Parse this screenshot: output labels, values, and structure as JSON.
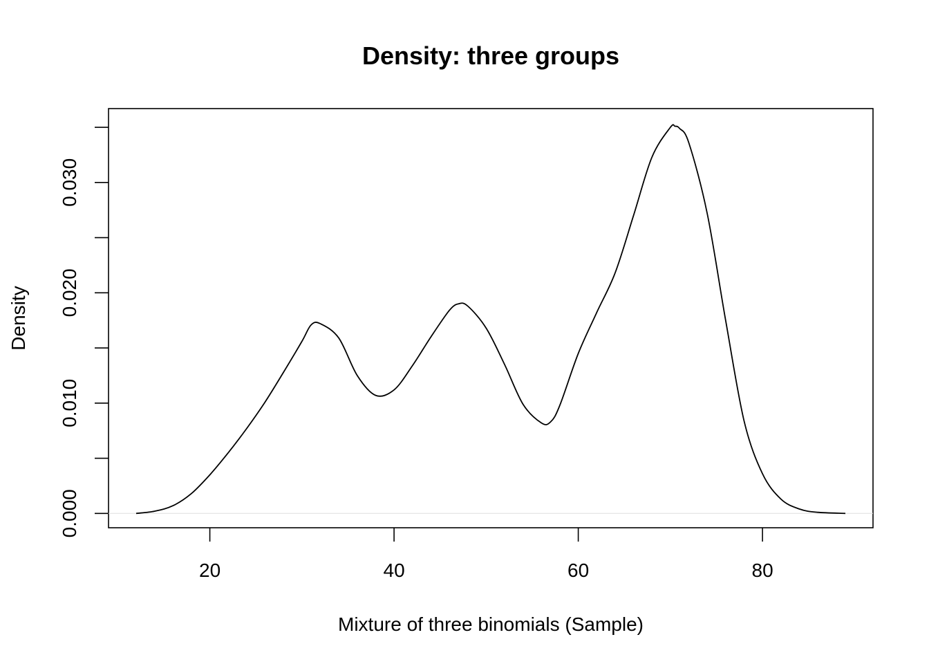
{
  "chart_data": {
    "type": "line",
    "title": "Density: three groups",
    "xlabel": "Mixture of three binomials (Sample)",
    "ylabel": "Density",
    "xlim": [
      9,
      92
    ],
    "ylim": [
      -0.0013,
      0.0367
    ],
    "x_ticks": [
      {
        "value": 20,
        "label": "20"
      },
      {
        "value": 40,
        "label": "40"
      },
      {
        "value": 60,
        "label": "60"
      },
      {
        "value": 80,
        "label": "80"
      }
    ],
    "y_ticks": [
      {
        "value": 0.0,
        "label": "0.000"
      },
      {
        "value": 0.005,
        "label": ""
      },
      {
        "value": 0.01,
        "label": "0.010"
      },
      {
        "value": 0.015,
        "label": ""
      },
      {
        "value": 0.02,
        "label": "0.020"
      },
      {
        "value": 0.025,
        "label": ""
      },
      {
        "value": 0.03,
        "label": "0.030"
      },
      {
        "value": 0.035,
        "label": ""
      }
    ],
    "grid": false,
    "baseline": 0,
    "series": [
      {
        "color": "#000000",
        "x": [
          12,
          14,
          16,
          18,
          20,
          22,
          24,
          26,
          28,
          30,
          31,
          32,
          34,
          36,
          38,
          40,
          42,
          44,
          46,
          47,
          48,
          50,
          52,
          54,
          56,
          57,
          58,
          60,
          62,
          64,
          66,
          68,
          70,
          70.5,
          71,
          72,
          74,
          76,
          78,
          80,
          82,
          84,
          86,
          89
        ],
        "y": [
          0.0,
          0.0002,
          0.0007,
          0.0018,
          0.0035,
          0.0055,
          0.0077,
          0.0101,
          0.0128,
          0.0156,
          0.0171,
          0.0172,
          0.0159,
          0.0125,
          0.0107,
          0.0112,
          0.0134,
          0.016,
          0.0184,
          0.019,
          0.0188,
          0.0168,
          0.0135,
          0.0099,
          0.0082,
          0.0083,
          0.0098,
          0.0145,
          0.0182,
          0.0218,
          0.027,
          0.0323,
          0.035,
          0.0351,
          0.0349,
          0.0336,
          0.0272,
          0.0175,
          0.0084,
          0.0036,
          0.0013,
          0.0004,
          0.0001,
          0.0
        ]
      }
    ]
  }
}
